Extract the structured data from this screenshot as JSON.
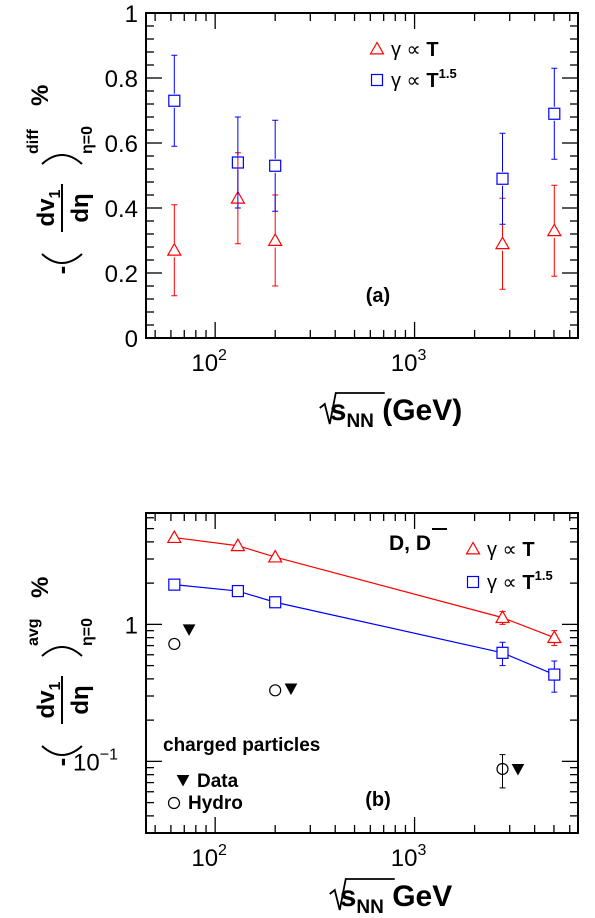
{
  "chart_data": [
    {
      "type": "scatter",
      "panel_label": "(a)",
      "x_scale": "log",
      "xlim": [
        45,
        6600
      ],
      "ylim": [
        0,
        1
      ],
      "xlabel": {
        "root": "s",
        "sub": "NN",
        "unit": "(GeV)"
      },
      "ylabel": {
        "num": "dv",
        "num_sub": "1",
        "den": "dη",
        "sup": "diff",
        "sub": "η=0",
        "unit": "%",
        "minus": "-"
      },
      "y_ticks": [
        0,
        0.2,
        0.4,
        0.6,
        0.8,
        1
      ],
      "y_tick_labels": [
        "0",
        "0.2",
        "0.4",
        "0.6",
        "0.8",
        "1"
      ],
      "x_tick_labels": [
        {
          "base": "10",
          "exp": "2"
        },
        {
          "base": "10",
          "exp": "3"
        }
      ],
      "legend_position": "top-right",
      "series": [
        {
          "name": "γ ∝ T",
          "legend_base": "γ  ∝ T",
          "legend_sup": "",
          "color": "#ff0000",
          "marker": "triangle",
          "x": [
            62.4,
            130,
            200,
            2760,
            5020
          ],
          "y": [
            0.27,
            0.43,
            0.3,
            0.29,
            0.33
          ],
          "err": [
            0.14,
            0.14,
            0.14,
            0.14,
            0.14
          ]
        },
        {
          "name": "γ ∝ T^1.5",
          "legend_base": "γ  ∝ T",
          "legend_sup": "1.5",
          "color": "#0000ff",
          "marker": "square",
          "x": [
            62.4,
            130,
            200,
            2760,
            5020
          ],
          "y": [
            0.73,
            0.54,
            0.53,
            0.49,
            0.69
          ],
          "err": [
            0.14,
            0.14,
            0.14,
            0.14,
            0.14
          ]
        }
      ]
    },
    {
      "type": "scatter",
      "panel_label": "(b)",
      "x_scale": "log",
      "y_scale": "log",
      "xlim": [
        45,
        6600
      ],
      "ylim": [
        0.03,
        6.5
      ],
      "xlabel": {
        "root": "s",
        "sub": "NN",
        "unit": "GeV"
      },
      "ylabel": {
        "num": "dv",
        "num_sub": "1",
        "den": "dη",
        "sup": "avg",
        "sub": "η=0",
        "unit": "%",
        "minus": "-"
      },
      "y_tick_labels": [
        {
          "base": "1",
          "exp": ""
        },
        {
          "base": "10",
          "exp": "−1"
        }
      ],
      "x_tick_labels": [
        {
          "base": "10",
          "exp": "2"
        },
        {
          "base": "10",
          "exp": "3"
        }
      ],
      "legend_position": "top-right",
      "species_label": {
        "text": "D, ",
        "bar": "D"
      },
      "extra_legend_title": "charged particles",
      "extra_legend_position": "bottom-left",
      "series": [
        {
          "name": "γ ∝ T",
          "legend_base": "γ  ∝ T",
          "legend_sup": "",
          "color": "#ff0000",
          "marker": "triangle",
          "line": true,
          "x": [
            62.4,
            130,
            200,
            2760,
            5020
          ],
          "y": [
            4.3,
            3.75,
            3.1,
            1.12,
            0.8
          ],
          "err": [
            0.0,
            0.0,
            0.0,
            0.12,
            0.1
          ]
        },
        {
          "name": "γ ∝ T^1.5",
          "legend_base": "γ  ∝ T",
          "legend_sup": "1.5",
          "color": "#0000ff",
          "marker": "square",
          "line": true,
          "x": [
            62.4,
            130,
            200,
            2760,
            5020
          ],
          "y": [
            1.95,
            1.75,
            1.45,
            0.62,
            0.43
          ],
          "err": [
            0.0,
            0.0,
            0.0,
            0.12,
            0.11
          ]
        },
        {
          "name": "Data",
          "color": "#000000",
          "marker": "triangle-down",
          "x": [
            74,
            240,
            3300
          ],
          "y": [
            0.92,
            0.34,
            0.088
          ],
          "err": [
            0,
            0,
            0
          ]
        },
        {
          "name": "Hydro",
          "color": "#000000",
          "marker": "circle",
          "x": [
            62.4,
            200,
            2760
          ],
          "y": [
            0.72,
            0.33,
            0.088
          ],
          "err": [
            0,
            0,
            0.024
          ]
        }
      ]
    }
  ]
}
